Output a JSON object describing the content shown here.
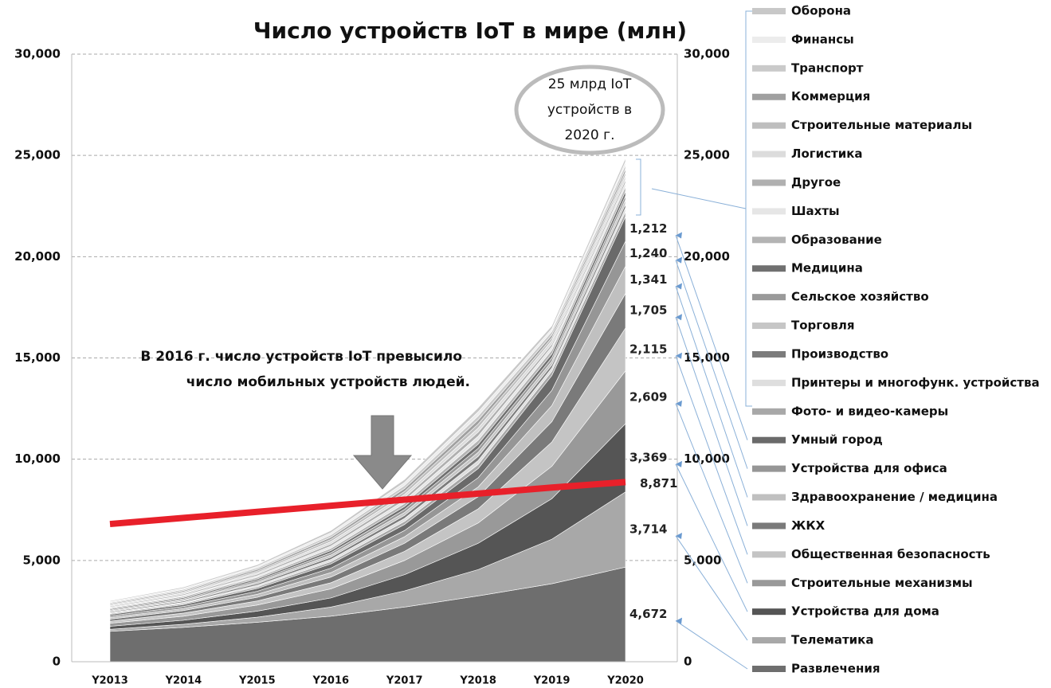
{
  "chart_data": {
    "type": "stacked_area",
    "title": "Число устройств IoT в мире (млн)",
    "annotation": [
      "В 2016 г. число устройств IoT превысило",
      "число мобильных устройств людей."
    ],
    "callout": [
      "25 млрд IoT",
      "устройств в",
      "2020 г."
    ],
    "categories": [
      "Y2013",
      "Y2014",
      "Y2015",
      "Y2016",
      "Y2017",
      "Y2018",
      "Y2019",
      "Y2020"
    ],
    "ylim": [
      0,
      30000
    ],
    "yticks": [
      0,
      {
        "value": 5000,
        "label": "5,000"
      },
      {
        "value": 10000,
        "label": "10,000"
      },
      {
        "value": 15000,
        "label": "15,000"
      },
      {
        "value": 20000,
        "label": "20,000"
      },
      {
        "value": 25000,
        "label": "25,000"
      },
      {
        "value": 30000,
        "label": "30,000"
      }
    ],
    "grid": true,
    "series": [
      {
        "name": "Оборона",
        "color": "#c8c8c8",
        "values": [
          45,
          58,
          78,
          110,
          148,
          200,
          153,
          180
        ]
      },
      {
        "name": "Финансы",
        "color": "#ececec",
        "values": [
          45,
          58,
          78,
          110,
          148,
          200,
          128,
          150
        ]
      },
      {
        "name": "Транспорт",
        "color": "#cacaca",
        "values": [
          45,
          58,
          78,
          110,
          148,
          200,
          170,
          200
        ]
      },
      {
        "name": "Коммерция",
        "color": "#a0a0a0",
        "values": [
          45,
          58,
          78,
          110,
          148,
          200,
          145,
          170
        ]
      },
      {
        "name": "Строительные материалы",
        "color": "#bebebe",
        "values": [
          45,
          58,
          78,
          110,
          148,
          200,
          136,
          160
        ]
      },
      {
        "name": "Логистика",
        "color": "#dcdcdc",
        "values": [
          45,
          58,
          78,
          110,
          148,
          200,
          179,
          210
        ]
      },
      {
        "name": "Другое",
        "color": "#b0b0b0",
        "values": [
          45,
          58,
          78,
          110,
          148,
          200,
          128,
          150
        ]
      },
      {
        "name": "Шахты",
        "color": "#e6e6e6",
        "values": [
          45,
          58,
          78,
          110,
          148,
          200,
          162,
          190
        ]
      },
      {
        "name": "Образование",
        "color": "#b4b4b4",
        "values": [
          45,
          58,
          78,
          110,
          148,
          200,
          187,
          220
        ]
      },
      {
        "name": "Медицина",
        "color": "#707070",
        "values": [
          45,
          58,
          78,
          110,
          148,
          200,
          196,
          230
        ]
      },
      {
        "name": "Сельское хозяйство",
        "color": "#9a9a9a",
        "values": [
          45,
          58,
          78,
          110,
          148,
          200,
          170,
          200
        ]
      },
      {
        "name": "Торговля",
        "color": "#c6c6c6",
        "values": [
          45,
          58,
          78,
          110,
          148,
          200,
          179,
          210
        ]
      },
      {
        "name": "Производство",
        "color": "#7c7c7c",
        "values": [
          45,
          58,
          78,
          110,
          148,
          200,
          153,
          180
        ]
      },
      {
        "name": "Принтеры и многофунк. устройства",
        "color": "#dedede",
        "values": [
          45,
          58,
          78,
          110,
          148,
          200,
          162,
          190
        ]
      },
      {
        "name": "Фото- и видео-камеры",
        "color": "#a8a8a8",
        "values": [
          45,
          58,
          78,
          110,
          148,
          200,
          213,
          250
        ]
      },
      {
        "name": "Умный город",
        "color": "#6a6a6a",
        "values": [
          70,
          90,
          140,
          210,
          300,
          450,
          730,
          1212
        ],
        "value_labels": [
          null,
          null,
          null,
          null,
          null,
          null,
          null,
          "1,212"
        ]
      },
      {
        "name": "Устройства для офиса",
        "color": "#969696",
        "values": [
          80,
          100,
          150,
          220,
          310,
          460,
          750,
          1240
        ],
        "value_labels": [
          null,
          null,
          null,
          null,
          null,
          null,
          null,
          "1,240"
        ]
      },
      {
        "name": "Здравоохранение / медицина",
        "color": "#c0c0c0",
        "values": [
          80,
          100,
          150,
          220,
          320,
          480,
          800,
          1341
        ],
        "value_labels": [
          null,
          null,
          null,
          null,
          null,
          null,
          null,
          "1,341"
        ]
      },
      {
        "name": "ЖКХ",
        "color": "#7a7a7a",
        "values": [
          100,
          130,
          180,
          280,
          400,
          600,
          1000,
          1705
        ],
        "value_labels": [
          null,
          null,
          null,
          null,
          null,
          null,
          null,
          "1,705"
        ]
      },
      {
        "name": "Общественная безопасность",
        "color": "#c4c4c4",
        "values": [
          100,
          150,
          200,
          300,
          450,
          700,
          1200,
          2115
        ],
        "value_labels": [
          null,
          null,
          null,
          null,
          null,
          null,
          null,
          "2,115"
        ]
      },
      {
        "name": "Строительные механизмы",
        "color": "#999999",
        "values": [
          150,
          200,
          300,
          450,
          700,
          1000,
          1600,
          2609
        ],
        "value_labels": [
          null,
          null,
          null,
          null,
          null,
          null,
          null,
          "2,609"
        ]
      },
      {
        "name": "Устройства для дома",
        "color": "#555555",
        "values": [
          150,
          200,
          300,
          450,
          800,
          1300,
          2000,
          3369
        ],
        "value_labels": [
          null,
          null,
          null,
          null,
          null,
          null,
          null,
          "3,369"
        ]
      },
      {
        "name": "Телематика",
        "color": "#a8a8a8",
        "values": [
          100,
          150,
          250,
          450,
          800,
          1300,
          2200,
          3714
        ],
        "value_labels": [
          null,
          null,
          null,
          null,
          null,
          null,
          null,
          "3,714"
        ]
      },
      {
        "name": "Развлечения",
        "color": "#6e6e6e",
        "values": [
          1500,
          1700,
          1950,
          2250,
          2700,
          3250,
          3850,
          4672
        ],
        "value_labels": [
          null,
          null,
          null,
          null,
          null,
          null,
          null,
          "4,672"
        ]
      }
    ],
    "line": {
      "color": "#e8202a",
      "values": [
        6800,
        7100,
        7400,
        7700,
        8000,
        8300,
        8600,
        8871
      ],
      "value_labels": [
        null,
        null,
        null,
        null,
        null,
        null,
        null,
        "8,871"
      ]
    }
  }
}
